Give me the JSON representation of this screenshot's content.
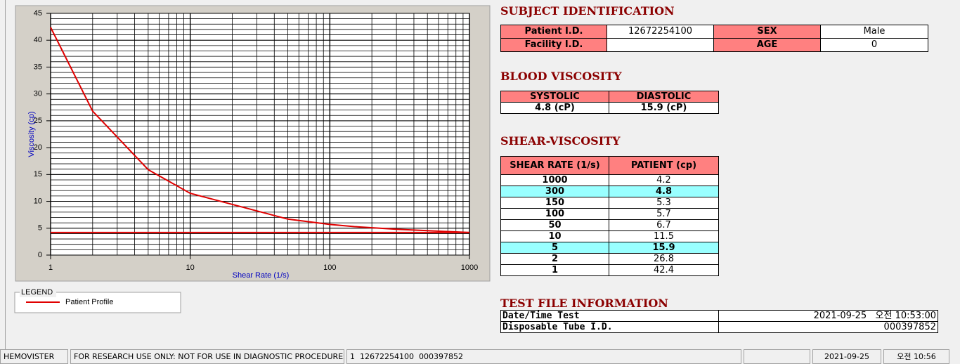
{
  "chart_data": {
    "type": "line",
    "x_label": "Shear Rate (1/s)",
    "y_label": "Viscosity (cp)",
    "log_x": true,
    "grid": true,
    "xlim": [
      1,
      1000
    ],
    "xticks": [
      1,
      10,
      100,
      1000
    ],
    "ylim": [
      0,
      45
    ],
    "yticks": [
      0,
      5,
      10,
      15,
      20,
      25,
      30,
      35,
      40,
      45
    ],
    "legend_title": "LEGEND",
    "series": [
      {
        "name": "Patient Profile",
        "color": "#e00000",
        "x": [
          1,
          2,
          5,
          10,
          50,
          100,
          150,
          300,
          1000
        ],
        "values": [
          42.4,
          26.8,
          15.9,
          11.5,
          6.7,
          5.7,
          5.3,
          4.8,
          4.2
        ]
      },
      {
        "color": "#e00000",
        "x": [
          1,
          1000
        ],
        "values": [
          4.2,
          4.2
        ]
      }
    ]
  },
  "subject_identification": {
    "title": "SUBJECT IDENTIFICATION",
    "rows": [
      [
        "Patient I.D.",
        "12672254100",
        "SEX",
        "Male"
      ],
      [
        "Facility I.D.",
        null,
        "AGE",
        "0"
      ]
    ]
  },
  "blood_viscosity": {
    "title": "BLOOD VISCOSITY",
    "headers": [
      "SYSTOLIC",
      "DIASTOLIC"
    ],
    "values": [
      "4.8 (cP)",
      "15.9 (cP)"
    ]
  },
  "shear_viscosity": {
    "title": "SHEAR-VISCOSITY",
    "headers": [
      "SHEAR RATE (1/s)",
      "PATIENT (cp)"
    ],
    "rows": [
      [
        "1000",
        "4.2"
      ],
      [
        "300",
        "4.8"
      ],
      [
        "150",
        "5.3"
      ],
      [
        "100",
        "5.7"
      ],
      [
        "50",
        "6.7"
      ],
      [
        "10",
        "11.5"
      ],
      [
        "5",
        "15.9"
      ],
      [
        "2",
        "26.8"
      ],
      [
        "1",
        "42.4"
      ]
    ],
    "highlight_rows": [
      1,
      6
    ]
  },
  "test_file": {
    "title": "TEST FILE INFORMATION",
    "rows": [
      [
        "Date/Time Test",
        "2021-09-25   오전 10:53:00"
      ],
      [
        "Disposable Tube I.D.",
        "000397852"
      ]
    ]
  },
  "status_bar": [
    "HEMOVISTER",
    "FOR RESEARCH USE ONLY: NOT FOR USE IN DIAGNOSTIC PROCEDURES",
    "1  12672254100  000397852",
    "2021-09-25",
    "오전 10:56"
  ]
}
